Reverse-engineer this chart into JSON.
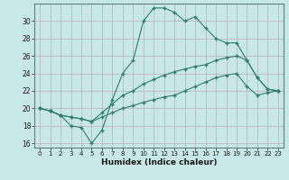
{
  "xlabel": "Humidex (Indice chaleur)",
  "ylabel": "",
  "background_color": "#c8e8e8",
  "grid_color": "#b8a8b8",
  "line_color": "#2e7d6e",
  "xlim": [
    -0.5,
    23.5
  ],
  "ylim": [
    15.5,
    32.0
  ],
  "xticks": [
    0,
    1,
    2,
    3,
    4,
    5,
    6,
    7,
    8,
    9,
    10,
    11,
    12,
    13,
    14,
    15,
    16,
    17,
    18,
    19,
    20,
    21,
    22,
    23
  ],
  "yticks": [
    16,
    18,
    20,
    22,
    24,
    26,
    28,
    30
  ],
  "line1_x": [
    0,
    1,
    2,
    3,
    4,
    5,
    6,
    7,
    8,
    9,
    10,
    11,
    12,
    13,
    14,
    15,
    16,
    17,
    18,
    19,
    20,
    21,
    22,
    23
  ],
  "line1_y": [
    20.0,
    19.7,
    19.2,
    18.0,
    17.8,
    16.0,
    17.5,
    21.0,
    24.0,
    25.5,
    30.0,
    31.5,
    31.5,
    31.0,
    30.0,
    30.5,
    29.2,
    28.0,
    27.5,
    27.5,
    25.5,
    23.5,
    22.2,
    22.0
  ],
  "line2_x": [
    0,
    1,
    2,
    3,
    4,
    5,
    6,
    7,
    8,
    9,
    10,
    11,
    12,
    13,
    14,
    15,
    16,
    17,
    18,
    19,
    20,
    21,
    22,
    23
  ],
  "line2_y": [
    20.0,
    19.7,
    19.2,
    19.0,
    18.8,
    18.5,
    19.5,
    20.5,
    21.5,
    22.0,
    22.8,
    23.3,
    23.8,
    24.2,
    24.5,
    24.8,
    25.0,
    25.5,
    25.8,
    26.0,
    25.5,
    23.5,
    22.2,
    22.0
  ],
  "line3_x": [
    0,
    1,
    2,
    3,
    4,
    5,
    6,
    7,
    8,
    9,
    10,
    11,
    12,
    13,
    14,
    15,
    16,
    17,
    18,
    19,
    20,
    21,
    22,
    23
  ],
  "line3_y": [
    20.0,
    19.7,
    19.2,
    19.0,
    18.8,
    18.5,
    19.0,
    19.5,
    20.0,
    20.3,
    20.7,
    21.0,
    21.3,
    21.5,
    22.0,
    22.5,
    23.0,
    23.5,
    23.8,
    24.0,
    22.5,
    21.5,
    21.8,
    22.0
  ]
}
